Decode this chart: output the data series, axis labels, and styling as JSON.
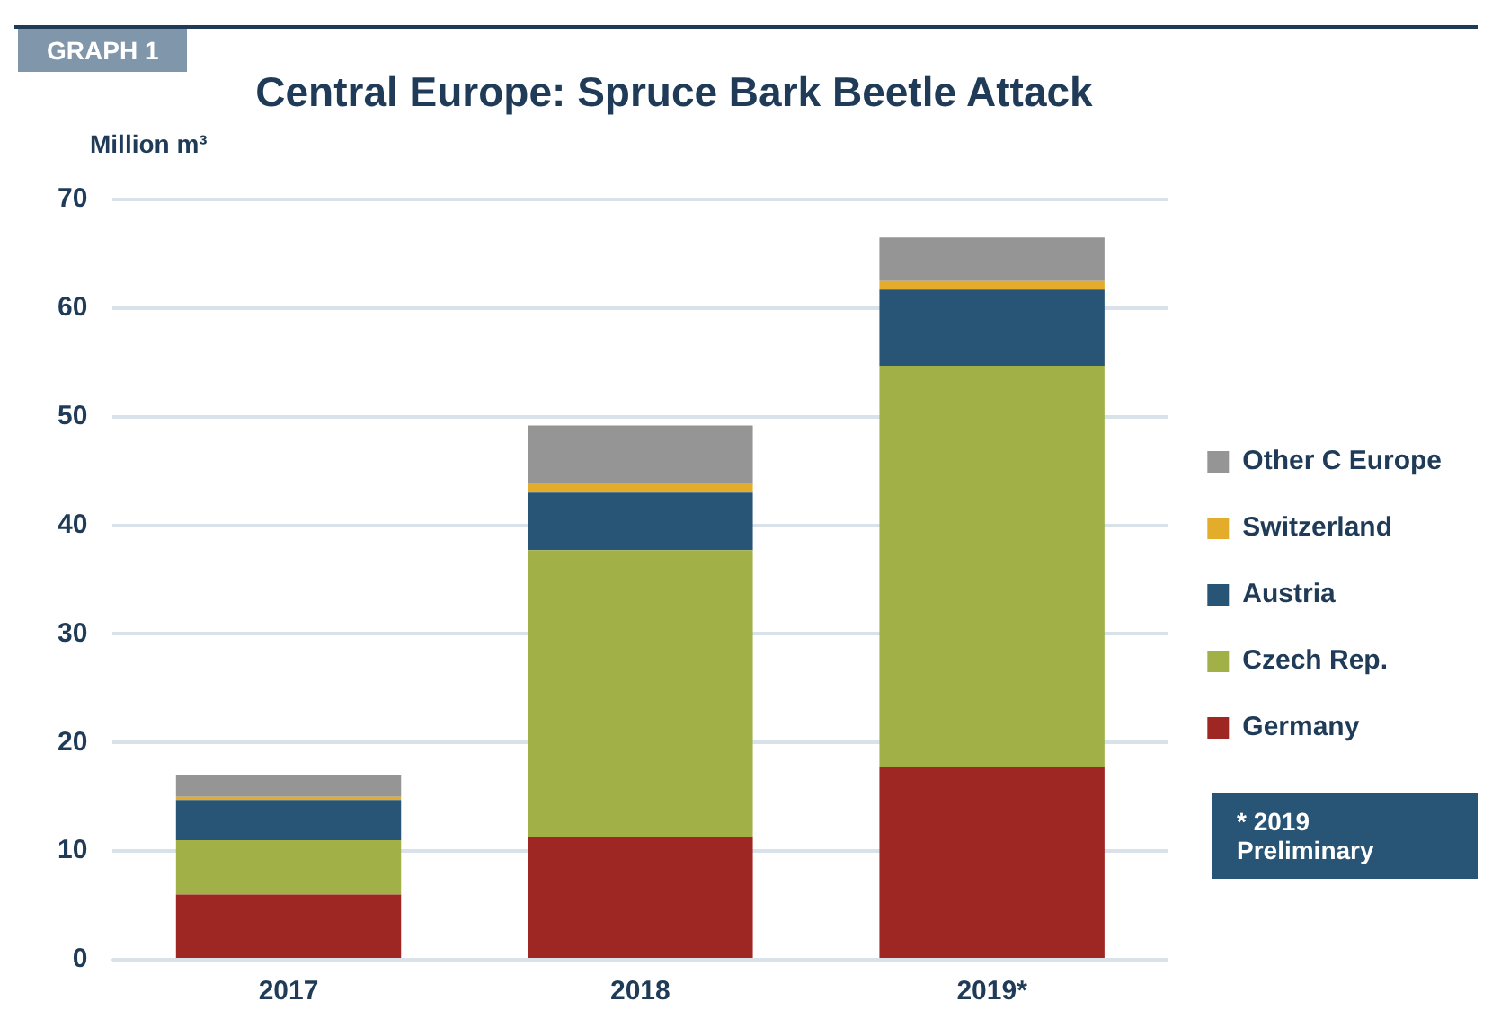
{
  "chart_data": {
    "type": "bar",
    "title": "Central Europe: Spruce Bark Beetle Attack",
    "ylabel": "Million m³",
    "categories": [
      "2017",
      "2018",
      "2019*"
    ],
    "series": [
      {
        "name": "Germany",
        "color": "#9e2623",
        "values": [
          6,
          11.3,
          17.7
        ]
      },
      {
        "name": "Czech Rep.",
        "color": "#a2b147",
        "values": [
          5,
          26.4,
          37
        ]
      },
      {
        "name": "Austria",
        "color": "#285475",
        "values": [
          3.7,
          5.3,
          7
        ]
      },
      {
        "name": "Switzerland",
        "color": "#e3ac2a",
        "values": [
          0.3,
          0.8,
          0.8
        ]
      },
      {
        "name": "Other C Europe",
        "color": "#959595",
        "values": [
          2,
          5.4,
          4
        ]
      }
    ],
    "stacked": true,
    "ylim": [
      0,
      70
    ],
    "yticks": [
      0,
      10,
      20,
      30,
      40,
      50,
      60,
      70
    ],
    "grid": "y",
    "legend": "right",
    "annotations": [
      "GRAPH 1",
      "* 2019 Preliminary"
    ]
  }
}
